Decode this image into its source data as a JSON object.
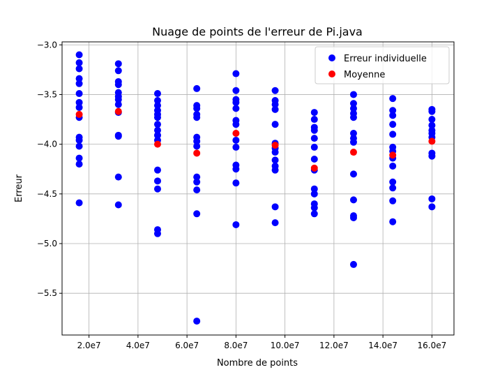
{
  "chart_data": {
    "type": "scatter",
    "title": "Nuage de points de l'erreur de Pi.java",
    "xlabel": "Nombre de points",
    "ylabel": "Erreur",
    "xlim": [
      9000000,
      169000000
    ],
    "ylim": [
      -5.92,
      -2.97
    ],
    "grid": true,
    "legend_position": "top-right",
    "x_ticks": [
      {
        "value": 20000000,
        "label": "2.0e7"
      },
      {
        "value": 40000000,
        "label": "4.0e7"
      },
      {
        "value": 60000000,
        "label": "6.0e7"
      },
      {
        "value": 80000000,
        "label": "8.0e7"
      },
      {
        "value": 100000000,
        "label": "10.0e7"
      },
      {
        "value": 120000000,
        "label": "12.0e7"
      },
      {
        "value": 140000000,
        "label": "14.0e7"
      },
      {
        "value": 160000000,
        "label": "16.0e7"
      }
    ],
    "y_ticks": [
      {
        "value": -3.0,
        "label": "−3.0"
      },
      {
        "value": -3.5,
        "label": "−3.5"
      },
      {
        "value": -4.0,
        "label": "−4.0"
      },
      {
        "value": -4.5,
        "label": "−4.5"
      },
      {
        "value": -5.0,
        "label": "−5.0"
      },
      {
        "value": -5.5,
        "label": "−5.5"
      }
    ],
    "series": [
      {
        "name": "Erreur individuelle",
        "color": "#0000ff",
        "points": [
          {
            "x": 16000000,
            "ys": [
              -3.1,
              -3.18,
              -3.24,
              -3.34,
              -3.39,
              -3.49,
              -3.58,
              -3.63,
              -3.73,
              -3.93,
              -3.96,
              -4.02,
              -4.14,
              -4.2,
              -4.59
            ]
          },
          {
            "x": 32000000,
            "ys": [
              -3.19,
              -3.26,
              -3.37,
              -3.4,
              -3.48,
              -3.52,
              -3.55,
              -3.6,
              -3.68,
              -3.91,
              -3.92,
              -4.33,
              -4.61
            ]
          },
          {
            "x": 48000000,
            "ys": [
              -3.49,
              -3.56,
              -3.61,
              -3.66,
              -3.7,
              -3.73,
              -3.8,
              -3.86,
              -3.91,
              -3.96,
              -4.26,
              -4.37,
              -4.45,
              -4.86,
              -4.9
            ]
          },
          {
            "x": 64000000,
            "ys": [
              -3.44,
              -3.61,
              -3.64,
              -3.7,
              -3.73,
              -3.93,
              -3.97,
              -4.02,
              -4.33,
              -4.38,
              -4.46,
              -4.7,
              -5.78
            ]
          },
          {
            "x": 80000000,
            "ys": [
              -3.29,
              -3.46,
              -3.55,
              -3.58,
              -3.64,
              -3.76,
              -3.8,
              -3.96,
              -4.03,
              -4.21,
              -4.25,
              -4.39,
              -4.81
            ]
          },
          {
            "x": 96000000,
            "ys": [
              -3.46,
              -3.56,
              -3.6,
              -3.65,
              -3.8,
              -3.99,
              -4.04,
              -4.08,
              -4.16,
              -4.22,
              -4.26,
              -4.63,
              -4.79
            ]
          },
          {
            "x": 112000000,
            "ys": [
              -3.68,
              -3.75,
              -3.83,
              -3.86,
              -3.94,
              -4.03,
              -4.15,
              -4.26,
              -4.45,
              -4.5,
              -4.6,
              -4.64,
              -4.7
            ]
          },
          {
            "x": 128000000,
            "ys": [
              -3.5,
              -3.59,
              -3.64,
              -3.69,
              -3.73,
              -3.89,
              -3.94,
              -3.98,
              -4.3,
              -4.56,
              -4.72,
              -4.74,
              -5.21
            ]
          },
          {
            "x": 144000000,
            "ys": [
              -3.54,
              -3.66,
              -3.71,
              -3.8,
              -3.9,
              -4.03,
              -4.07,
              -4.14,
              -4.22,
              -4.38,
              -4.44,
              -4.57,
              -4.78
            ]
          },
          {
            "x": 160000000,
            "ys": [
              -3.65,
              -3.67,
              -3.75,
              -3.81,
              -3.86,
              -3.89,
              -3.93,
              -4.09,
              -4.12,
              -4.55,
              -4.63
            ]
          }
        ]
      },
      {
        "name": "Moyenne",
        "color": "#ff0000",
        "points": [
          {
            "x": 16000000,
            "y": -3.7
          },
          {
            "x": 32000000,
            "y": -3.67
          },
          {
            "x": 48000000,
            "y": -4.0
          },
          {
            "x": 64000000,
            "y": -4.09
          },
          {
            "x": 80000000,
            "y": -3.89
          },
          {
            "x": 96000000,
            "y": -4.01
          },
          {
            "x": 112000000,
            "y": -4.24
          },
          {
            "x": 128000000,
            "y": -4.08
          },
          {
            "x": 144000000,
            "y": -4.11
          },
          {
            "x": 160000000,
            "y": -3.97
          }
        ]
      }
    ]
  }
}
